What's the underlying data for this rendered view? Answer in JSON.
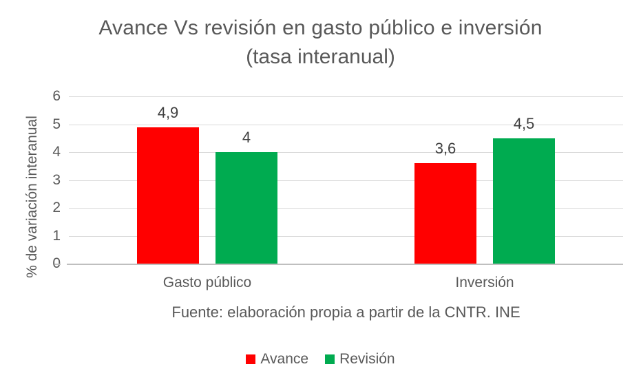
{
  "chart_data": {
    "type": "bar",
    "title": "Avance Vs revisión en gasto público e inversión",
    "subtitle": "(tasa interanual)",
    "ylabel": "% de variación interanual",
    "xlabel": "",
    "categories": [
      "Gasto público",
      "Inversión"
    ],
    "series": [
      {
        "name": "Avance",
        "color": "#ff0000",
        "values": [
          4.9,
          3.6
        ],
        "labels": [
          "4,9",
          "3,6"
        ]
      },
      {
        "name": "Revisión",
        "color": "#00ab50",
        "values": [
          4.0,
          4.5
        ],
        "labels": [
          "4",
          "4,5"
        ]
      }
    ],
    "ylim": [
      0,
      6
    ],
    "yticks": [
      "0",
      "1",
      "2",
      "3",
      "4",
      "5",
      "6"
    ],
    "grid": true,
    "legend_position": "bottom"
  },
  "footer": {
    "source": "Fuente: elaboración propia a partir de la CNTR. INE"
  },
  "colors": {
    "text": "#595959",
    "data_label": "#404040",
    "gridline": "#d9d9d9",
    "axis_line": "#bfbfbf",
    "background": "#ffffff",
    "series_avance": "#ff0000",
    "series_revision": "#00ab50"
  }
}
